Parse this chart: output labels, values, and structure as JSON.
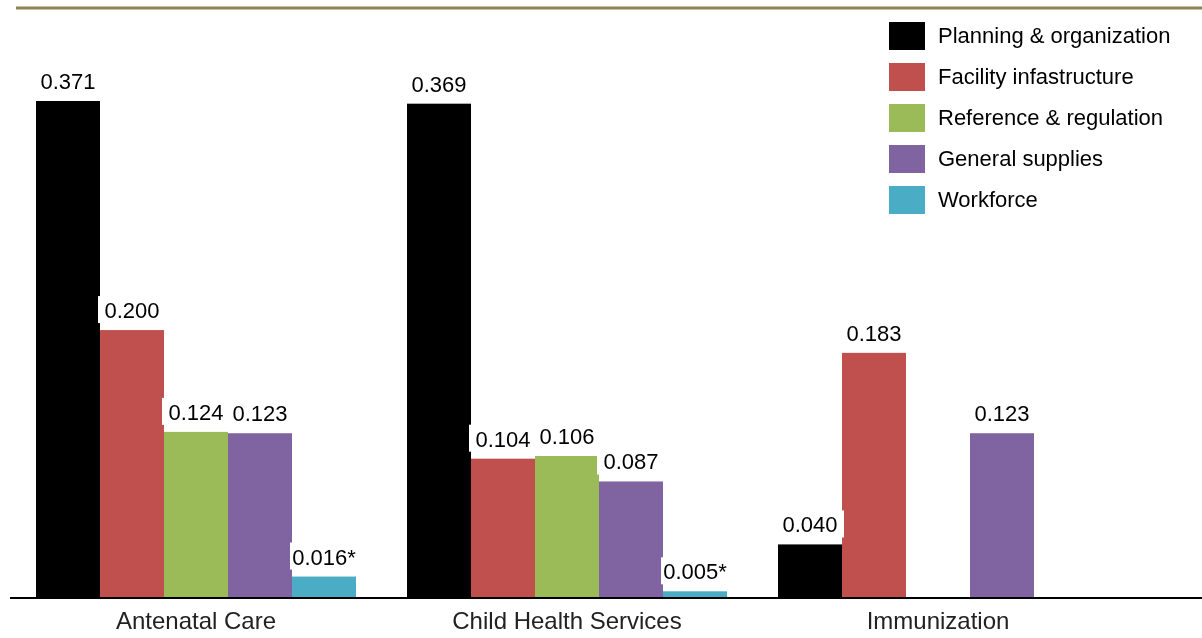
{
  "chart_data": {
    "type": "bar",
    "categories": [
      "Antenatal Care",
      "Child Health Services",
      "Immunization"
    ],
    "series": [
      {
        "name": "Planning & organization",
        "color": "#000000",
        "values": [
          0.371,
          0.369,
          0.04
        ],
        "value_labels": [
          "0.371",
          "0.369",
          "0.040"
        ]
      },
      {
        "name": "Facility infastructure",
        "color": "#c0504d",
        "values": [
          0.2,
          0.104,
          0.183
        ],
        "value_labels": [
          "0.200",
          "0.104",
          "0.183"
        ]
      },
      {
        "name": "Reference & regulation",
        "color": "#9bbb59",
        "values": [
          0.124,
          0.106,
          null
        ],
        "value_labels": [
          "0.124",
          "0.106",
          null
        ]
      },
      {
        "name": "General supplies",
        "color": "#8064a2",
        "values": [
          0.123,
          0.087,
          0.123
        ],
        "value_labels": [
          "0.123",
          "0.087",
          "0.123"
        ]
      },
      {
        "name": "Workforce",
        "color": "#4bacc6",
        "values": [
          0.016,
          0.005,
          null
        ],
        "value_labels": [
          "0.016*",
          "0.005*",
          null
        ]
      }
    ],
    "legend": "top right"
  }
}
